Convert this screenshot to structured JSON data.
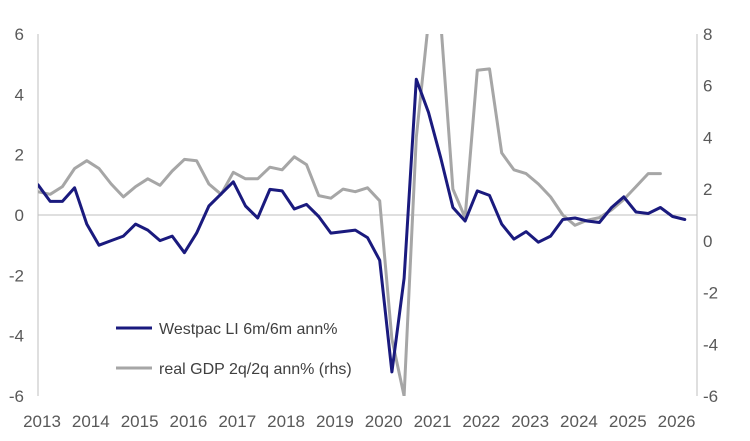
{
  "chart_data": {
    "type": "line",
    "title": "",
    "xlabel": "",
    "ylabel": "",
    "y2label": "",
    "x_axis": {
      "range": [
        2013.0,
        2026.5
      ],
      "ticks": [
        2013,
        2014,
        2015,
        2016,
        2017,
        2018,
        2019,
        2020,
        2021,
        2022,
        2023,
        2024,
        2025,
        2026
      ],
      "tick_labels": [
        "2013",
        "2014",
        "2015",
        "2016",
        "2017",
        "2018",
        "2019",
        "2020",
        "2021",
        "2022",
        "2023",
        "2024",
        "2025",
        "2026"
      ]
    },
    "y_left": {
      "range": [
        -6,
        6
      ],
      "ticks": [
        6,
        4,
        2,
        0,
        -2,
        -4,
        -6
      ],
      "tick_labels": [
        "6",
        "4",
        "2",
        "0",
        "-2",
        "-4",
        "-6"
      ]
    },
    "y_right": {
      "range": [
        -6,
        8
      ],
      "ticks": [
        8,
        6,
        4,
        2,
        0,
        -2,
        -4,
        -6
      ],
      "tick_labels": [
        "8",
        "6",
        "4",
        "2",
        "0",
        "-2",
        "-4",
        "-6"
      ]
    },
    "grid": false,
    "legend_position": "bottom-left",
    "series": [
      {
        "name": "Westpac LI 6m/6m ann%",
        "axis": "left",
        "color": "#1a1a7e",
        "points": [
          [
            2013.0,
            1.0
          ],
          [
            2013.25,
            0.45
          ],
          [
            2013.5,
            0.45
          ],
          [
            2013.75,
            0.9
          ],
          [
            2014.0,
            -0.3
          ],
          [
            2014.25,
            -1.0
          ],
          [
            2014.5,
            -0.85
          ],
          [
            2014.75,
            -0.7
          ],
          [
            2015.0,
            -0.3
          ],
          [
            2015.25,
            -0.5
          ],
          [
            2015.5,
            -0.85
          ],
          [
            2015.75,
            -0.7
          ],
          [
            2016.0,
            -1.25
          ],
          [
            2016.25,
            -0.6
          ],
          [
            2016.5,
            0.3
          ],
          [
            2016.75,
            0.7
          ],
          [
            2017.0,
            1.1
          ],
          [
            2017.25,
            0.3
          ],
          [
            2017.5,
            -0.1
          ],
          [
            2017.75,
            0.85
          ],
          [
            2018.0,
            0.8
          ],
          [
            2018.25,
            0.2
          ],
          [
            2018.5,
            0.35
          ],
          [
            2018.75,
            -0.05
          ],
          [
            2019.0,
            -0.6
          ],
          [
            2019.25,
            -0.55
          ],
          [
            2019.5,
            -0.5
          ],
          [
            2019.75,
            -0.75
          ],
          [
            2020.0,
            -1.5
          ],
          [
            2020.25,
            -5.2
          ],
          [
            2020.5,
            -2.1
          ],
          [
            2020.75,
            4.5
          ],
          [
            2021.0,
            3.4
          ],
          [
            2021.25,
            1.9
          ],
          [
            2021.5,
            0.25
          ],
          [
            2021.75,
            -0.2
          ],
          [
            2022.0,
            0.8
          ],
          [
            2022.25,
            0.65
          ],
          [
            2022.5,
            -0.3
          ],
          [
            2022.75,
            -0.8
          ],
          [
            2023.0,
            -0.55
          ],
          [
            2023.25,
            -0.9
          ],
          [
            2023.5,
            -0.7
          ],
          [
            2023.75,
            -0.15
          ],
          [
            2024.0,
            -0.1
          ],
          [
            2024.25,
            -0.2
          ],
          [
            2024.5,
            -0.25
          ],
          [
            2024.75,
            0.25
          ],
          [
            2025.0,
            0.6
          ],
          [
            2025.25,
            0.1
          ],
          [
            2025.5,
            0.05
          ],
          [
            2025.75,
            0.25
          ],
          [
            2026.0,
            -0.05
          ],
          [
            2026.25,
            -0.15
          ]
        ]
      },
      {
        "name": "real GDP 2q/2q ann% (rhs)",
        "axis": "right",
        "color": "#a6a6a6",
        "points": [
          [
            2013.0,
            1.9
          ],
          [
            2013.25,
            1.8
          ],
          [
            2013.5,
            2.1
          ],
          [
            2013.75,
            2.8
          ],
          [
            2014.0,
            3.1
          ],
          [
            2014.25,
            2.8
          ],
          [
            2014.5,
            2.2
          ],
          [
            2014.75,
            1.7
          ],
          [
            2015.0,
            2.1
          ],
          [
            2015.25,
            2.4
          ],
          [
            2015.5,
            2.15
          ],
          [
            2015.75,
            2.7
          ],
          [
            2016.0,
            3.15
          ],
          [
            2016.25,
            3.1
          ],
          [
            2016.5,
            2.2
          ],
          [
            2016.75,
            1.8
          ],
          [
            2017.0,
            2.65
          ],
          [
            2017.25,
            2.4
          ],
          [
            2017.5,
            2.4
          ],
          [
            2017.75,
            2.85
          ],
          [
            2018.0,
            2.75
          ],
          [
            2018.25,
            3.25
          ],
          [
            2018.5,
            2.95
          ],
          [
            2018.75,
            1.75
          ],
          [
            2019.0,
            1.65
          ],
          [
            2019.25,
            2.0
          ],
          [
            2019.5,
            1.9
          ],
          [
            2019.75,
            2.05
          ],
          [
            2020.0,
            1.55
          ],
          [
            2020.25,
            -3.8
          ],
          [
            2020.5,
            -6.0
          ],
          [
            2020.75,
            4.0
          ],
          [
            2021.0,
            8.5
          ],
          [
            2021.25,
            8.5
          ],
          [
            2021.5,
            2.0
          ],
          [
            2021.75,
            0.9
          ],
          [
            2022.0,
            6.6
          ],
          [
            2022.25,
            6.65
          ],
          [
            2022.5,
            3.4
          ],
          [
            2022.75,
            2.75
          ],
          [
            2023.0,
            2.6
          ],
          [
            2023.25,
            2.2
          ],
          [
            2023.5,
            1.7
          ],
          [
            2023.75,
            1.0
          ],
          [
            2024.0,
            0.6
          ],
          [
            2024.25,
            0.8
          ],
          [
            2024.5,
            0.9
          ],
          [
            2024.75,
            1.2
          ],
          [
            2025.0,
            1.6
          ],
          [
            2025.25,
            2.1
          ],
          [
            2025.5,
            2.6
          ],
          [
            2025.75,
            2.6
          ]
        ]
      }
    ]
  }
}
